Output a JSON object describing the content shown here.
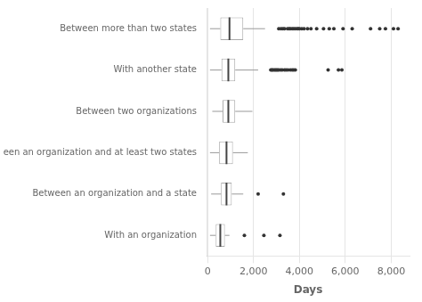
{
  "chart_data": {
    "type": "box",
    "orientation": "horizontal",
    "categories": [
      "Between more than two states",
      "With another state",
      "Between two organizations",
      "Between an organization and at least two states",
      "Between an organization and a state",
      "With an organization"
    ],
    "boxes": [
      {
        "q1": 550,
        "median": 950,
        "q3": 1550,
        "whisker_low": 100,
        "whisker_high": 2500,
        "outliers": [
          3100,
          3200,
          3280,
          3350,
          3480,
          3550,
          3600,
          3680,
          3750,
          3820,
          3900,
          3950,
          4000,
          4100,
          4200,
          4350,
          4500,
          4750,
          5050,
          5300,
          5500,
          5900,
          6300,
          7100,
          7500,
          7750,
          8100,
          8300
        ]
      },
      {
        "q1": 600,
        "median": 900,
        "q3": 1200,
        "whisker_low": 100,
        "whisker_high": 2200,
        "outliers": [
          2750,
          2800,
          2840,
          2900,
          2950,
          3000,
          3050,
          3100,
          3180,
          3250,
          3350,
          3420,
          3500,
          3600,
          3680,
          3750,
          3820,
          5250,
          5700,
          5850
        ]
      },
      {
        "q1": 650,
        "median": 900,
        "q3": 1200,
        "whisker_low": 200,
        "whisker_high": 1950,
        "outliers": []
      },
      {
        "q1": 500,
        "median": 820,
        "q3": 1100,
        "whisker_low": 100,
        "whisker_high": 1750,
        "outliers": []
      },
      {
        "q1": 580,
        "median": 820,
        "q3": 1050,
        "whisker_low": 150,
        "whisker_high": 1550,
        "outliers": [
          2200,
          3300
        ]
      },
      {
        "q1": 350,
        "median": 550,
        "q3": 750,
        "whisker_low": 100,
        "whisker_high": 950,
        "outliers": [
          1600,
          2450,
          3150
        ]
      }
    ],
    "xlabel": "Days",
    "xlim": [
      -50,
      8800
    ],
    "xticks": [
      0,
      2000,
      4000,
      6000,
      8000
    ],
    "grid": true
  }
}
